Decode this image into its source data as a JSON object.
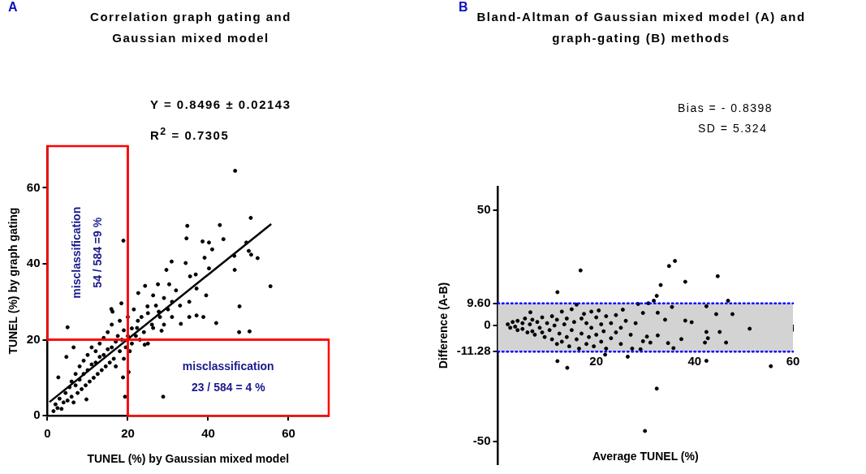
{
  "chart_data": [
    {
      "type": "scatter",
      "title": "Correlation graph gating and Gaussian mixed model",
      "xlabel": "TUNEL (%) by Gaussian mixed model",
      "ylabel": "TUNEL (%) by graph gating",
      "annotations": [
        "A",
        "Y = 0.8496 ± 0.02143",
        "R$^{2}$ = 0.7305",
        "misclassification\n54 / 584 =9 %",
        "misclassification\n23 / 584 = 4 %"
      ],
      "xlim": [
        0,
        70
      ],
      "ylim": [
        0,
        71
      ],
      "xticks": [
        0,
        20,
        40,
        60
      ],
      "yticks": [
        0,
        20,
        40,
        60
      ],
      "grid": false,
      "legend": false,
      "marker": "circle",
      "ref_lines": [
        {
          "axis": "x",
          "value": 20,
          "color": "#ff0000"
        },
        {
          "axis": "y",
          "value": 20,
          "color": "#ff0000"
        }
      ],
      "series": [
        {
          "type": "scatter",
          "color": "#000000",
          "x": [
            46.7,
            50.6,
            34.8,
            42.9,
            34.6,
            43.8,
            38.6,
            40.2,
            41.0,
            50.1,
            49.5,
            52.3,
            50.7,
            46.5,
            39.1,
            46.6,
            40.2,
            34.4,
            30.9,
            29.6,
            36.9,
            35.5,
            55.5,
            37.1,
            39.5,
            47.8,
            35.3,
            33.2,
            35.3,
            37.1,
            38.8,
            42.0,
            47.7,
            50.3,
            28.8,
            19.3,
            18.9,
            5.0,
            24.3,
            22.6,
            27.5,
            30.3,
            26.3,
            27.7,
            26.3,
            28.4,
            24.9,
            23.4,
            22.3,
            24.2,
            20.2,
            18.8,
            18.4,
            16.2,
            15.9,
            9.7,
            2.7,
            6.5,
            4.7,
            1.5,
            2,
            2.5,
            3,
            3.5,
            4,
            4.5,
            5,
            5.5,
            6,
            6,
            6.5,
            7,
            7,
            7.5,
            8,
            8,
            8.5,
            9,
            9,
            9.5,
            10,
            10,
            10.5,
            11,
            11,
            11.5,
            12,
            12,
            12.5,
            13,
            13,
            13.5,
            14,
            14,
            14.5,
            15,
            15,
            15.5,
            16,
            16,
            16.5,
            17,
            17,
            17.5,
            18,
            18,
            18.5,
            19,
            19,
            19.5,
            20,
            20,
            20.5,
            21,
            21,
            21.5,
            22,
            22.5,
            23,
            24,
            25,
            25,
            26,
            27,
            28,
            29,
            30,
            31,
            32,
            33,
            31,
            29
          ],
          "values": [
            64.5,
            52.1,
            50.0,
            50.2,
            46.7,
            46.5,
            45.9,
            45.6,
            43.8,
            43.4,
            45.6,
            41.5,
            42.4,
            42.1,
            41.6,
            38.4,
            38.8,
            40.2,
            40.6,
            38.4,
            37.2,
            36.7,
            34.1,
            33.5,
            31.7,
            28.8,
            30.0,
            24.2,
            26.0,
            26.4,
            26.0,
            24.4,
            22.0,
            22.2,
            5.0,
            5.0,
            46.1,
            23.3,
            34.2,
            32.3,
            34.6,
            34.6,
            31.7,
            27.4,
            23.1,
            22.4,
            28.8,
            26.0,
            23.1,
            18.7,
            11.5,
            10.1,
            29.6,
            27.4,
            28.1,
            4.3,
            10.1,
            18.0,
            15.5,
            1.2,
            3,
            2,
            4.5,
            1.8,
            3.5,
            6,
            4,
            7.5,
            5,
            9,
            3.5,
            8,
            11,
            6,
            9.5,
            13,
            7,
            11,
            14.5,
            8,
            12,
            16,
            9,
            13.5,
            18,
            10,
            14,
            17,
            11,
            15.5,
            19,
            12,
            16,
            20.5,
            13,
            17.5,
            22,
            14,
            18,
            24,
            15,
            19.5,
            13,
            21,
            17,
            25,
            20,
            15,
            22.5,
            18,
            21,
            26,
            17,
            23,
            19,
            28,
            21,
            25,
            20,
            22,
            19,
            27,
            24,
            29,
            26,
            31,
            28,
            30,
            33,
            29,
            26,
            24
          ]
        },
        {
          "type": "line",
          "color": "#000000",
          "marker": "none",
          "x": [
            0.5,
            55.7
          ],
          "values": [
            3.6,
            50.5
          ]
        }
      ]
    },
    {
      "type": "scatter",
      "title": "Bland-Altman of Gaussian mixed model (A) and graph-gating (B) methods",
      "xlabel": "Average TUNEL (%)",
      "ylabel": "Difference (A-B)",
      "annotations": [
        "B",
        "Bias = - 0.8398",
        "SD = 5.324"
      ],
      "xlim": [
        0,
        60
      ],
      "ylim": [
        -60,
        60
      ],
      "xticks": [
        20,
        40,
        60
      ],
      "yticks": [
        50,
        {
          "value": 9.6,
          "label": "9.60"
        },
        0,
        -11.28,
        -50
      ],
      "grid": false,
      "legend": false,
      "marker": "circle",
      "bands": [
        {
          "axis": "y",
          "from": -11.28,
          "to": 9.6,
          "color": "#d3d3d3"
        }
      ],
      "ref_lines": [
        {
          "axis": "y",
          "value": 9.6,
          "color": "#0000ff",
          "line_style": "dotted"
        },
        {
          "axis": "y",
          "value": -11.28,
          "color": "#0000ff",
          "line_style": "dotted"
        }
      ],
      "series": [
        {
          "type": "scatter",
          "color": "#000000",
          "x": [
            16.8,
            12.1,
            36.0,
            34.8,
            44.7,
            38.1,
            33.1,
            32.3,
            31.7,
            46.8,
            47.7,
            44.4,
            42.4,
            35.4,
            32.5,
            34.0,
            38.1,
            39.4,
            51.2,
            45.1,
            42.4,
            42.7,
            42.1,
            46.4,
            37.3,
            35.7,
            34.6,
            32.5,
            31.0,
            30.3,
            29.5,
            29.0,
            27.3,
            26.4,
            21.8,
            42.4,
            55.5,
            14.1,
            12.1,
            32.3,
            29.9,
            28.5,
            30.6,
            25.4,
            29.5,
            6.6,
            2,
            2.5,
            3,
            3.5,
            4,
            4,
            5,
            5,
            5.5,
            6,
            6.5,
            7,
            7,
            7.5,
            8,
            8.5,
            9,
            9,
            9.5,
            10,
            10.5,
            11,
            11,
            11.5,
            12,
            12,
            12.5,
            13,
            13,
            13.5,
            14,
            14,
            14.5,
            15,
            15,
            15.5,
            16,
            16,
            16.5,
            17,
            17,
            17.5,
            18,
            18,
            18.5,
            19,
            19,
            19.5,
            20,
            20,
            20.5,
            21,
            21,
            21.5,
            22,
            22,
            23,
            23,
            24,
            24,
            25,
            25,
            26,
            27,
            28
          ],
          "values": [
            23.8,
            14.4,
            27.9,
            25.7,
            21.3,
            18.9,
            17.5,
            12.8,
            10.7,
            10.7,
            4.9,
            4.9,
            8.3,
            8.0,
            5.5,
            2.5,
            2.1,
            1.4,
            -1.4,
            -2.8,
            -2.8,
            -5.5,
            -7.4,
            -7.4,
            -5.9,
            -9.8,
            -7.6,
            -4.3,
            -7.4,
            -4.8,
            -6.8,
            -10.3,
            -10.0,
            -13.5,
            -12.6,
            -15.3,
            -17.6,
            -18.3,
            -15.4,
            -27.3,
            -45.6,
            9.3,
            9.6,
            6.8,
            5.4,
            5.7,
            0.5,
            -1,
            1.5,
            -0.5,
            2,
            -2,
            1,
            -1.5,
            3,
            -3,
            0.5,
            2.5,
            -2.5,
            -4,
            1.5,
            -1,
            3.5,
            -3,
            -5,
            1,
            -2,
            4,
            -6,
            0,
            -8,
            2.5,
            -3.5,
            6,
            -7,
            0.5,
            3,
            -5,
            -9,
            7,
            -2,
            1.5,
            -6,
            9,
            -10,
            3,
            -3.5,
            5,
            -8,
            1,
            -5,
            6,
            -1,
            -9,
            3.5,
            -4,
            6.5,
            -7,
            0.5,
            -2.5,
            4,
            -10,
            1,
            -5.5,
            -3,
            4.5,
            -1,
            -8,
            2,
            -4,
            1
          ]
        }
      ]
    }
  ]
}
